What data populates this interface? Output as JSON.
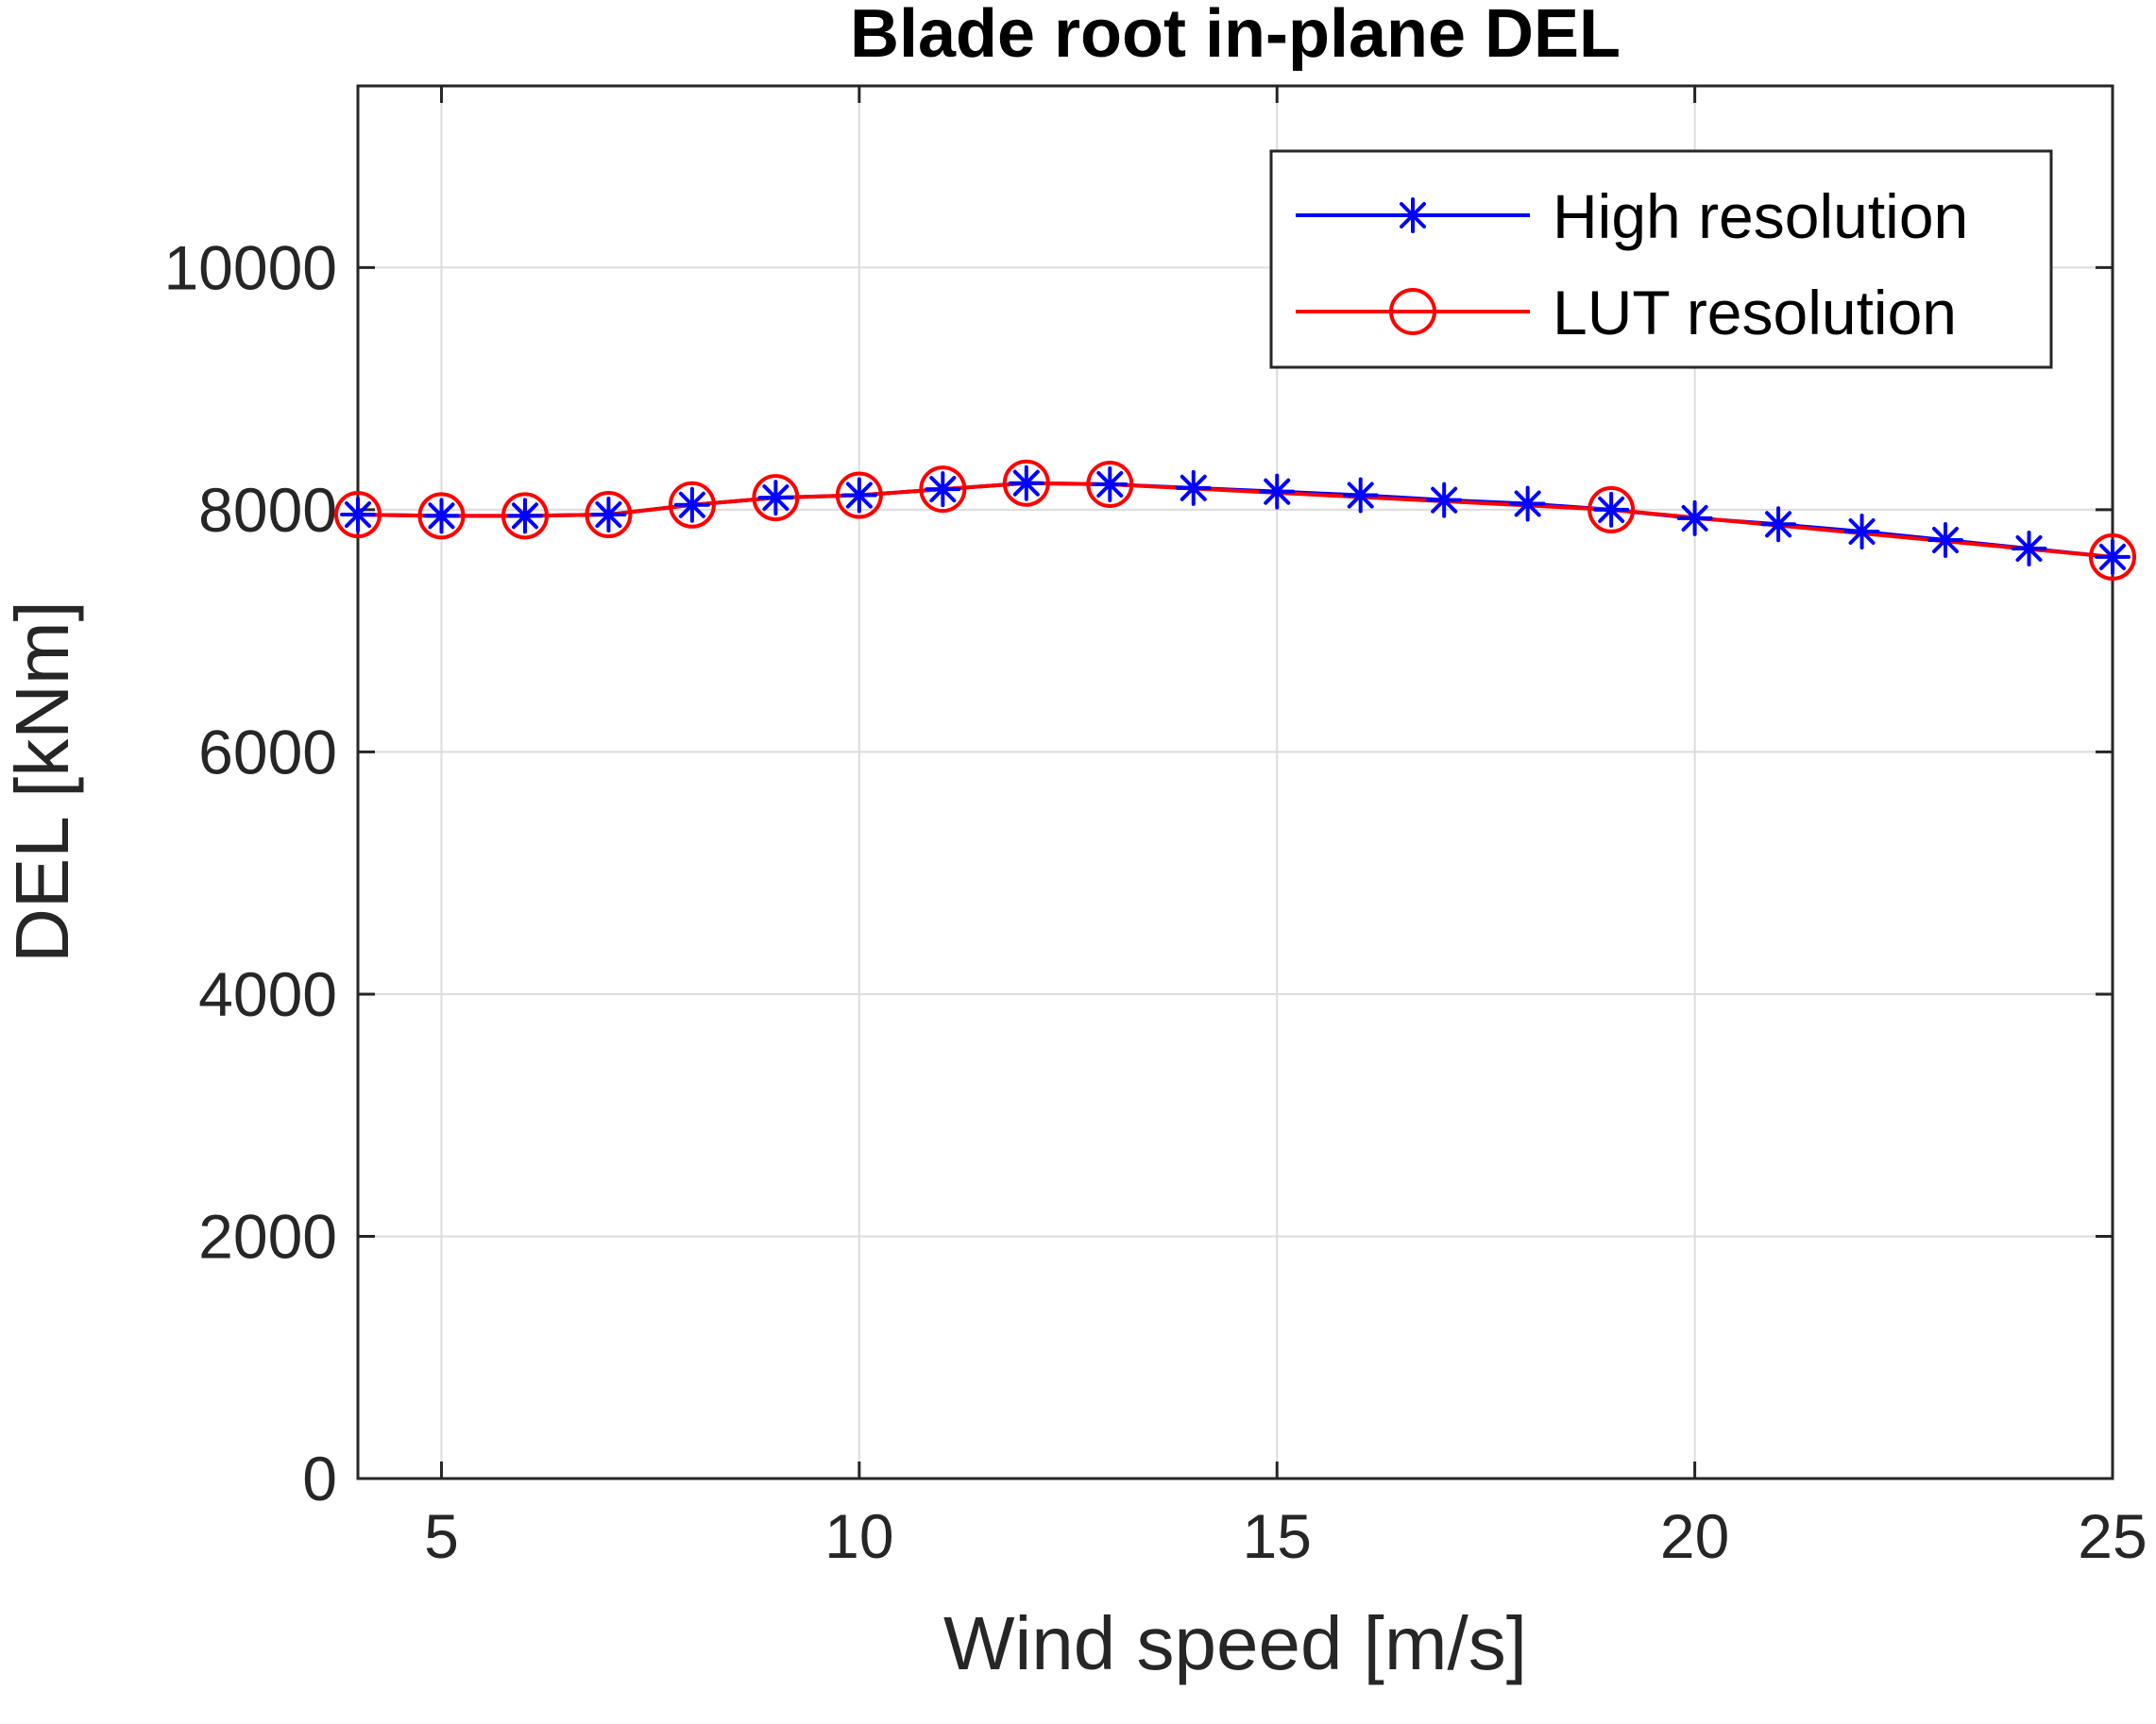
{
  "chart_data": {
    "type": "line",
    "title": "Blade root in-plane DEL",
    "xlabel": "Wind speed [m/s]",
    "ylabel": "DEL [kNm]",
    "xlim": [
      4,
      25
    ],
    "ylim": [
      0,
      11500
    ],
    "xticks": [
      5,
      10,
      15,
      20,
      25
    ],
    "yticks": [
      0,
      2000,
      4000,
      6000,
      8000,
      10000
    ],
    "grid": true,
    "legend_position": "top-right",
    "series": [
      {
        "name": "High resolution",
        "color": "#0000ff",
        "marker": "asterisk",
        "x": [
          4,
          5,
          6,
          7,
          8,
          9,
          10,
          11,
          12,
          13,
          14,
          15,
          16,
          17,
          18,
          19,
          20,
          21,
          22,
          23,
          24,
          25
        ],
        "values": [
          7960,
          7950,
          7950,
          7960,
          8040,
          8100,
          8120,
          8170,
          8220,
          8210,
          8180,
          8150,
          8120,
          8080,
          8050,
          8000,
          7930,
          7880,
          7820,
          7750,
          7680,
          7610
        ]
      },
      {
        "name": "LUT resolution",
        "color": "#ff0000",
        "marker": "circle",
        "x": [
          4,
          5,
          6,
          7,
          8,
          9,
          10,
          11,
          12,
          13,
          19,
          25
        ],
        "values": [
          7960,
          7950,
          7950,
          7960,
          8040,
          8100,
          8120,
          8170,
          8220,
          8210,
          8000,
          7610
        ]
      }
    ]
  }
}
